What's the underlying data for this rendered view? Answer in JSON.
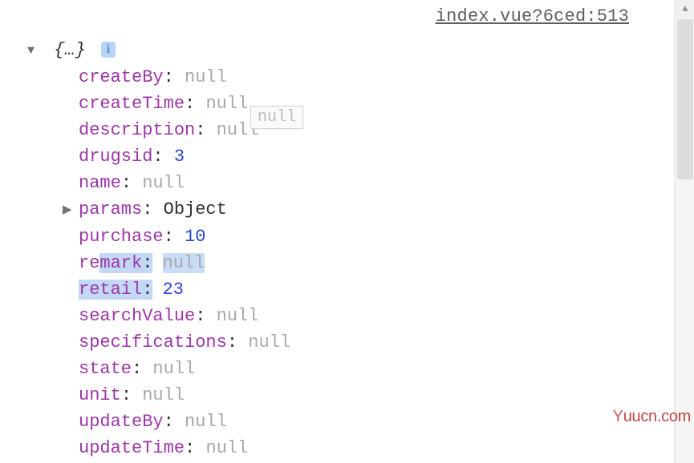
{
  "source_link": "index.vue?6ced:513",
  "header": {
    "braces": "{…}",
    "toggle": "▼"
  },
  "tooltip": "null",
  "watermark": "Yuucn.com",
  "props": [
    {
      "key": "createBy",
      "value": "null",
      "type": "null",
      "toggle": false,
      "highlight": "none"
    },
    {
      "key": "createTime",
      "value": "null",
      "type": "null",
      "toggle": false,
      "highlight": "none"
    },
    {
      "key": "description",
      "value": "null",
      "type": "null",
      "toggle": false,
      "highlight": "none"
    },
    {
      "key": "drugsid",
      "value": "3",
      "type": "number",
      "toggle": false,
      "highlight": "none"
    },
    {
      "key": "name",
      "value": "null",
      "type": "null",
      "toggle": false,
      "highlight": "none"
    },
    {
      "key": "params",
      "value": "Object",
      "type": "object",
      "toggle": true,
      "highlight": "none"
    },
    {
      "key": "purchase",
      "value": "10",
      "type": "number",
      "toggle": false,
      "highlight": "none"
    },
    {
      "key": "remark",
      "value": "null",
      "type": "null",
      "toggle": false,
      "highlight": "partial",
      "partial_from": 2
    },
    {
      "key": "retail",
      "value": "23",
      "type": "number",
      "toggle": false,
      "highlight": "key"
    },
    {
      "key": "searchValue",
      "value": "null",
      "type": "null",
      "toggle": false,
      "highlight": "none"
    },
    {
      "key": "specifications",
      "value": "null",
      "type": "null",
      "toggle": false,
      "highlight": "none"
    },
    {
      "key": "state",
      "value": "null",
      "type": "null",
      "toggle": false,
      "highlight": "none"
    },
    {
      "key": "unit",
      "value": "null",
      "type": "null",
      "toggle": false,
      "highlight": "none"
    },
    {
      "key": "updateBy",
      "value": "null",
      "type": "null",
      "toggle": false,
      "highlight": "none"
    },
    {
      "key": "updateTime",
      "value": "null",
      "type": "null",
      "toggle": false,
      "highlight": "none"
    }
  ],
  "colors": {
    "key": "#9d36a8",
    "null": "#a8a8a8",
    "number": "#2846d2",
    "highlight_bg": "#c3d8f5",
    "link": "#5e5e5e",
    "watermark": "#c04848",
    "scrollbar_track": "#f5f5f5",
    "scrollbar_thumb": "#dcdcdc"
  }
}
